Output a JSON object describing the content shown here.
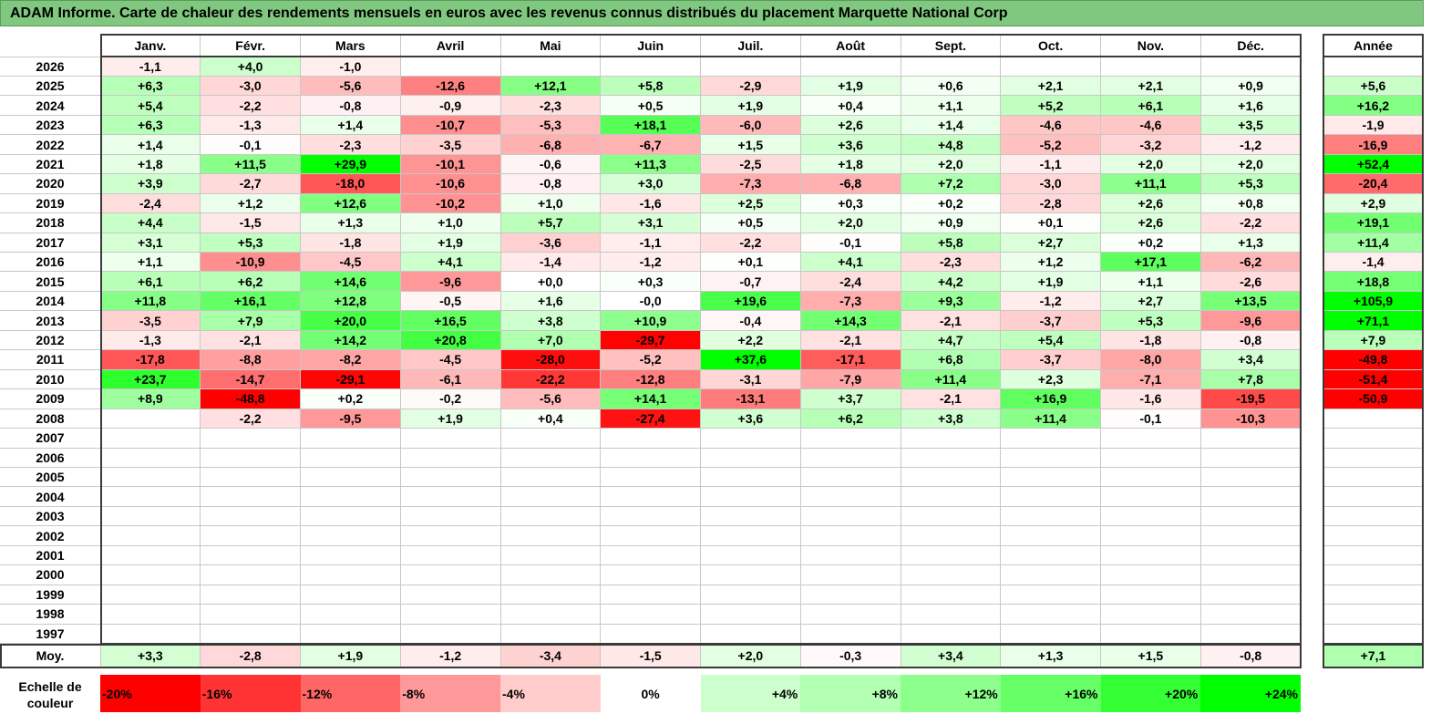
{
  "title": "ADAM Informe. Carte de chaleur des rendements mensuels en euros avec les revenus connus distribués du placement Marquette National Corp",
  "chart_data": {
    "type": "heatmap",
    "months": [
      "Janv.",
      "Févr.",
      "Mars",
      "Avril",
      "Mai",
      "Juin",
      "Juil.",
      "Août",
      "Sept.",
      "Oct.",
      "Nov.",
      "Déc."
    ],
    "year_header": "Année",
    "rows": [
      {
        "year": "2026",
        "values": [
          "-1,1",
          "+4,0",
          "-1,0",
          "",
          "",
          "",
          "",
          "",
          "",
          "",
          "",
          ""
        ],
        "annual": ""
      },
      {
        "year": "2025",
        "values": [
          "+6,3",
          "-3,0",
          "-5,6",
          "-12,6",
          "+12,1",
          "+5,8",
          "-2,9",
          "+1,9",
          "+0,6",
          "+2,1",
          "+2,1",
          "+0,9"
        ],
        "annual": "+5,6"
      },
      {
        "year": "2024",
        "values": [
          "+5,4",
          "-2,2",
          "-0,8",
          "-0,9",
          "-2,3",
          "+0,5",
          "+1,9",
          "+0,4",
          "+1,1",
          "+5,2",
          "+6,1",
          "+1,6"
        ],
        "annual": "+16,2"
      },
      {
        "year": "2023",
        "values": [
          "+6,3",
          "-1,3",
          "+1,4",
          "-10,7",
          "-5,3",
          "+18,1",
          "-6,0",
          "+2,6",
          "+1,4",
          "-4,6",
          "-4,6",
          "+3,5"
        ],
        "annual": "-1,9"
      },
      {
        "year": "2022",
        "values": [
          "+1,4",
          "-0,1",
          "-2,3",
          "-3,5",
          "-6,8",
          "-6,7",
          "+1,5",
          "+3,6",
          "+4,8",
          "-5,2",
          "-3,2",
          "-1,2"
        ],
        "annual": "-16,9"
      },
      {
        "year": "2021",
        "values": [
          "+1,8",
          "+11,5",
          "+29,9",
          "-10,1",
          "-0,6",
          "+11,3",
          "-2,5",
          "+1,8",
          "+2,0",
          "-1,1",
          "+2,0",
          "+2,0"
        ],
        "annual": "+52,4"
      },
      {
        "year": "2020",
        "values": [
          "+3,9",
          "-2,7",
          "-18,0",
          "-10,6",
          "-0,8",
          "+3,0",
          "-7,3",
          "-6,8",
          "+7,2",
          "-3,0",
          "+11,1",
          "+5,3"
        ],
        "annual": "-20,4"
      },
      {
        "year": "2019",
        "values": [
          "-2,4",
          "+1,2",
          "+12,6",
          "-10,2",
          "+1,0",
          "-1,6",
          "+2,5",
          "+0,3",
          "+0,2",
          "-2,8",
          "+2,6",
          "+0,8"
        ],
        "annual": "+2,9"
      },
      {
        "year": "2018",
        "values": [
          "+4,4",
          "-1,5",
          "+1,3",
          "+1,0",
          "+5,7",
          "+3,1",
          "+0,5",
          "+2,0",
          "+0,9",
          "+0,1",
          "+2,6",
          "-2,2"
        ],
        "annual": "+19,1"
      },
      {
        "year": "2017",
        "values": [
          "+3,1",
          "+5,3",
          "-1,8",
          "+1,9",
          "-3,6",
          "-1,1",
          "-2,2",
          "-0,1",
          "+5,8",
          "+2,7",
          "+0,2",
          "+1,3"
        ],
        "annual": "+11,4"
      },
      {
        "year": "2016",
        "values": [
          "+1,1",
          "-10,9",
          "-4,5",
          "+4,1",
          "-1,4",
          "-1,2",
          "+0,1",
          "+4,1",
          "-2,3",
          "+1,2",
          "+17,1",
          "-6,2"
        ],
        "annual": "-1,4"
      },
      {
        "year": "2015",
        "values": [
          "+6,1",
          "+6,2",
          "+14,6",
          "-9,6",
          "+0,0",
          "+0,3",
          "-0,7",
          "-2,4",
          "+4,2",
          "+1,9",
          "+1,1",
          "-2,6"
        ],
        "annual": "+18,8"
      },
      {
        "year": "2014",
        "values": [
          "+11,8",
          "+16,1",
          "+12,8",
          "-0,5",
          "+1,6",
          "-0,0",
          "+19,6",
          "-7,3",
          "+9,3",
          "-1,2",
          "+2,7",
          "+13,5"
        ],
        "annual": "+105,9"
      },
      {
        "year": "2013",
        "values": [
          "-3,5",
          "+7,9",
          "+20,0",
          "+16,5",
          "+3,8",
          "+10,9",
          "-0,4",
          "+14,3",
          "-2,1",
          "-3,7",
          "+5,3",
          "-9,6"
        ],
        "annual": "+71,1"
      },
      {
        "year": "2012",
        "values": [
          "-1,3",
          "-2,1",
          "+14,2",
          "+20,8",
          "+7,0",
          "-29,7",
          "+2,2",
          "-2,1",
          "+4,7",
          "+5,4",
          "-1,8",
          "-0,8"
        ],
        "annual": "+7,9"
      },
      {
        "year": "2011",
        "values": [
          "-17,8",
          "-8,8",
          "-8,2",
          "-4,5",
          "-28,0",
          "-5,2",
          "+37,6",
          "-17,1",
          "+6,8",
          "-3,7",
          "-8,0",
          "+3,4"
        ],
        "annual": "-49,8"
      },
      {
        "year": "2010",
        "values": [
          "+23,7",
          "-14,7",
          "-29,1",
          "-6,1",
          "-22,2",
          "-12,8",
          "-3,1",
          "-7,9",
          "+11,4",
          "+2,3",
          "-7,1",
          "+7,8"
        ],
        "annual": "-51,4"
      },
      {
        "year": "2009",
        "values": [
          "+8,9",
          "-48,8",
          "+0,2",
          "-0,2",
          "-5,6",
          "+14,1",
          "-13,1",
          "+3,7",
          "-2,1",
          "+16,9",
          "-1,6",
          "-19,5"
        ],
        "annual": "-50,9"
      },
      {
        "year": "2008",
        "values": [
          "",
          "-2,2",
          "-9,5",
          "+1,9",
          "+0,4",
          "-27,4",
          "+3,6",
          "+6,2",
          "+3,8",
          "+11,4",
          "-0,1",
          "-10,3"
        ],
        "annual": ""
      },
      {
        "year": "2007",
        "values": [
          "",
          "",
          "",
          "",
          "",
          "",
          "",
          "",
          "",
          "",
          "",
          ""
        ],
        "annual": ""
      },
      {
        "year": "2006",
        "values": [
          "",
          "",
          "",
          "",
          "",
          "",
          "",
          "",
          "",
          "",
          "",
          ""
        ],
        "annual": ""
      },
      {
        "year": "2005",
        "values": [
          "",
          "",
          "",
          "",
          "",
          "",
          "",
          "",
          "",
          "",
          "",
          ""
        ],
        "annual": ""
      },
      {
        "year": "2004",
        "values": [
          "",
          "",
          "",
          "",
          "",
          "",
          "",
          "",
          "",
          "",
          "",
          ""
        ],
        "annual": ""
      },
      {
        "year": "2003",
        "values": [
          "",
          "",
          "",
          "",
          "",
          "",
          "",
          "",
          "",
          "",
          "",
          ""
        ],
        "annual": ""
      },
      {
        "year": "2002",
        "values": [
          "",
          "",
          "",
          "",
          "",
          "",
          "",
          "",
          "",
          "",
          "",
          ""
        ],
        "annual": ""
      },
      {
        "year": "2001",
        "values": [
          "",
          "",
          "",
          "",
          "",
          "",
          "",
          "",
          "",
          "",
          "",
          ""
        ],
        "annual": ""
      },
      {
        "year": "2000",
        "values": [
          "",
          "",
          "",
          "",
          "",
          "",
          "",
          "",
          "",
          "",
          "",
          ""
        ],
        "annual": ""
      },
      {
        "year": "1999",
        "values": [
          "",
          "",
          "",
          "",
          "",
          "",
          "",
          "",
          "",
          "",
          "",
          ""
        ],
        "annual": ""
      },
      {
        "year": "1998",
        "values": [
          "",
          "",
          "",
          "",
          "",
          "",
          "",
          "",
          "",
          "",
          "",
          ""
        ],
        "annual": ""
      },
      {
        "year": "1997",
        "values": [
          "",
          "",
          "",
          "",
          "",
          "",
          "",
          "",
          "",
          "",
          "",
          ""
        ],
        "annual": ""
      }
    ],
    "average": {
      "label": "Moy.",
      "values": [
        "+3,3",
        "-2,8",
        "+1,9",
        "-1,2",
        "-3,4",
        "-1,5",
        "+2,0",
        "-0,3",
        "+3,4",
        "+1,3",
        "+1,5",
        "-0,8"
      ],
      "annual": "+7,1"
    },
    "scale": {
      "label": "Echelle de couleur",
      "steps": [
        "-20%",
        "-16%",
        "-12%",
        "-8%",
        "-4%",
        "0%",
        "+4%",
        "+8%",
        "+12%",
        "+16%",
        "+20%",
        "+24%"
      ],
      "colors": [
        "#ff0000",
        "#ff3333",
        "#ff6666",
        "#ff9999",
        "#ffcccc",
        "#ffffff",
        "#ccffcc",
        "#b3ffb3",
        "#8cff8c",
        "#66ff66",
        "#33ff33",
        "#00ff00"
      ]
    },
    "colors": {
      "negative_max": "#ff0000",
      "neutral": "#ffffff",
      "positive_max": "#00ff00",
      "title_bg": "#80c880"
    }
  }
}
